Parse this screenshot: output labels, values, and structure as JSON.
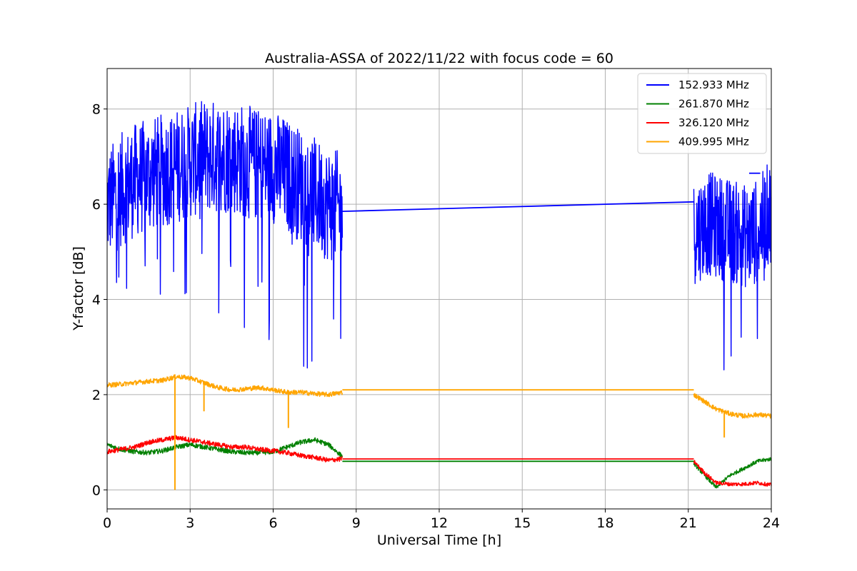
{
  "chart_data": {
    "type": "line",
    "title": "Australia-ASSA of 2022/11/22 with focus code = 60",
    "xlabel": "Universal Time [h]",
    "ylabel": "Y-factor [dB]",
    "xlim": [
      0,
      24
    ],
    "ylim": [
      -0.4,
      8.85
    ],
    "xticks": [
      0,
      3,
      6,
      9,
      12,
      15,
      18,
      21,
      24
    ],
    "yticks": [
      0,
      2,
      4,
      6,
      8
    ],
    "grid": true,
    "legend_position": "top-right",
    "series": [
      {
        "name": "152.933 MHz",
        "color": "#0000ff",
        "style": "noisy",
        "segments": [
          {
            "x": [
              0.0,
              0.5,
              1.0,
              1.5,
              2.0,
              2.5,
              3.0,
              3.5,
              4.0,
              4.5,
              5.0,
              5.5,
              6.0,
              6.5,
              7.0,
              7.5,
              8.0,
              8.5
            ],
            "y": [
              6.0,
              6.3,
              6.5,
              6.6,
              6.7,
              6.8,
              6.9,
              7.0,
              7.0,
              7.0,
              6.9,
              6.8,
              6.8,
              6.6,
              6.4,
              6.2,
              6.0,
              5.9
            ],
            "amplitude": 1.2
          },
          {
            "x": [
              8.5,
              21.2
            ],
            "y": [
              5.85,
              6.05
            ],
            "amplitude": 0
          },
          {
            "x": [
              21.2,
              21.7,
              22.2,
              22.7,
              23.2,
              23.6,
              24.0
            ],
            "y": [
              5.4,
              5.6,
              5.5,
              5.4,
              5.3,
              5.5,
              5.9
            ],
            "amplitude": 1.1
          },
          {
            "x": [
              23.2,
              23.6
            ],
            "y": [
              6.65,
              6.65
            ],
            "amplitude": 0
          }
        ]
      },
      {
        "name": "261.870 MHz",
        "color": "#008000",
        "style": "noisy",
        "segments": [
          {
            "x": [
              0.0,
              0.5,
              1.0,
              1.5,
              2.0,
              2.5,
              3.0,
              3.5,
              4.0,
              4.5,
              5.0,
              5.5,
              6.0,
              6.5,
              7.0,
              7.5,
              8.0,
              8.5
            ],
            "y": [
              0.95,
              0.85,
              0.8,
              0.78,
              0.82,
              0.9,
              0.95,
              0.9,
              0.85,
              0.8,
              0.78,
              0.78,
              0.8,
              0.9,
              1.0,
              1.05,
              0.95,
              0.7
            ],
            "amplitude": 0.05
          },
          {
            "x": [
              8.5,
              21.2
            ],
            "y": [
              0.6,
              0.6
            ],
            "amplitude": 0
          },
          {
            "x": [
              21.2,
              21.6,
              22.0,
              22.5,
              23.0,
              23.5,
              24.0
            ],
            "y": [
              0.55,
              0.3,
              0.05,
              0.3,
              0.45,
              0.6,
              0.65
            ],
            "amplitude": 0.04
          }
        ]
      },
      {
        "name": "326.120 MHz",
        "color": "#ff0000",
        "style": "noisy",
        "segments": [
          {
            "x": [
              0.0,
              0.5,
              1.0,
              1.5,
              2.0,
              2.5,
              3.0,
              3.5,
              4.0,
              4.5,
              5.0,
              5.5,
              6.0,
              6.5,
              7.0,
              7.5,
              8.0,
              8.5
            ],
            "y": [
              0.8,
              0.85,
              0.9,
              1.0,
              1.05,
              1.1,
              1.05,
              1.0,
              0.95,
              0.9,
              0.9,
              0.85,
              0.82,
              0.78,
              0.72,
              0.68,
              0.62,
              0.65
            ],
            "amplitude": 0.05
          },
          {
            "x": [
              8.5,
              21.2
            ],
            "y": [
              0.65,
              0.65
            ],
            "amplitude": 0
          },
          {
            "x": [
              21.2,
              21.6,
              22.0,
              22.5,
              23.0,
              23.5,
              24.0
            ],
            "y": [
              0.6,
              0.35,
              0.15,
              0.12,
              0.12,
              0.15,
              0.1
            ],
            "amplitude": 0.04
          }
        ]
      },
      {
        "name": "409.995 MHz",
        "color": "#ffa500",
        "style": "noisy",
        "segments": [
          {
            "x": [
              0.0,
              0.5,
              1.0,
              1.5,
              2.0,
              2.5,
              3.0,
              3.5,
              4.0,
              4.5,
              5.0,
              5.5,
              6.0,
              6.5,
              7.0,
              7.5,
              8.0,
              8.5
            ],
            "y": [
              2.2,
              2.22,
              2.25,
              2.28,
              2.3,
              2.38,
              2.35,
              2.25,
              2.15,
              2.1,
              2.12,
              2.15,
              2.1,
              2.05,
              2.05,
              2.02,
              2.0,
              2.05
            ],
            "amplitude": 0.05
          },
          {
            "x": [
              8.5,
              21.2
            ],
            "y": [
              2.1,
              2.1
            ],
            "amplitude": 0
          },
          {
            "x": [
              21.2,
              21.6,
              22.0,
              22.5,
              23.0,
              23.5,
              24.0
            ],
            "y": [
              2.0,
              1.85,
              1.7,
              1.6,
              1.55,
              1.58,
              1.55
            ],
            "amplitude": 0.05
          }
        ],
        "spikes": [
          [
            2.45,
            0.0
          ],
          [
            3.5,
            1.65
          ],
          [
            6.55,
            1.3
          ],
          [
            22.3,
            1.1
          ]
        ]
      }
    ]
  }
}
